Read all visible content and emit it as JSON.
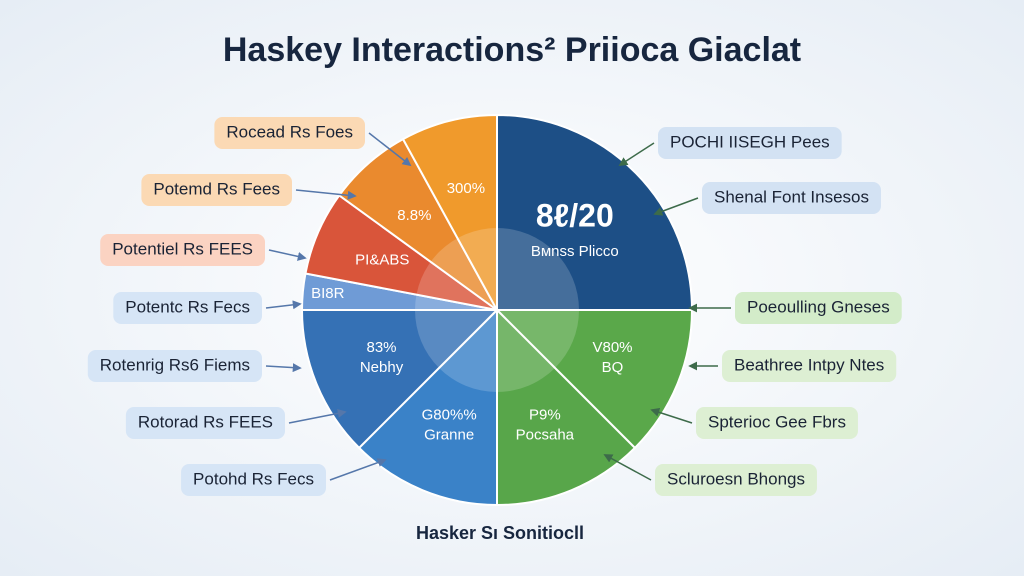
{
  "chart_data": {
    "type": "pie",
    "title": "Haskey Interactions² Priioca Giaclat",
    "footer": "Hasker Sı Sonitiocll",
    "slices": [
      {
        "value": 25,
        "color": "#1d4f86",
        "labels": [
          "8ℓ/20",
          "Bмnss Plicco"
        ]
      },
      {
        "value": 12.5,
        "color": "#5aa84a",
        "labels": [
          "V80%",
          "BQ"
        ]
      },
      {
        "value": 12.5,
        "color": "#58a64a",
        "labels": [
          "P9%",
          "Pocsaha"
        ]
      },
      {
        "value": 12.5,
        "color": "#3a82c8",
        "labels": [
          "G80%%",
          "Granne"
        ]
      },
      {
        "value": 12.5,
        "color": "#3571b5",
        "labels": [
          "83%",
          "Nebhy"
        ]
      },
      {
        "value": 3,
        "color": "#6f9bd6",
        "labels": [
          "BI8R"
        ]
      },
      {
        "value": 7,
        "color": "#d9553a",
        "labels": [
          "PI&ABS"
        ]
      },
      {
        "value": 7,
        "color": "#ea8a2e",
        "labels": [
          "8.8%"
        ]
      },
      {
        "value": 8,
        "color": "#f09a2c",
        "labels": [
          "300%"
        ]
      }
    ],
    "callouts": {
      "left": [
        {
          "text": "Rocead Rs Foes",
          "color": "#fbd9b4"
        },
        {
          "text": "Potemd Rs Fees",
          "color": "#fbd9b4"
        },
        {
          "text": "Potentiel Rs FEES",
          "color": "#fbd3c2"
        },
        {
          "text": "Potentc Rs Fecs",
          "color": "#d6e5f6"
        },
        {
          "text": "Rotenrig Rs6 Fiems",
          "color": "#d6e5f6"
        },
        {
          "text": "Rotorad Rs FEES",
          "color": "#d6e5f6"
        },
        {
          "text": "Potohd Rs Fecs",
          "color": "#d6e5f6"
        }
      ],
      "right": [
        {
          "text": "POCHI IISEGH Pees",
          "color": "#d3e2f3"
        },
        {
          "text": "Shenal Font Insesos",
          "color": "#d3e2f3"
        },
        {
          "text": "Poeoulling Gneses",
          "color": "#d3ecc9"
        },
        {
          "text": "Beathree Intpy Ntes",
          "color": "#ddefd3"
        },
        {
          "text": "Spterioc Gee Fbrs",
          "color": "#ddefd3"
        },
        {
          "text": "Scluroesn Bhongs",
          "color": "#ddefd3"
        }
      ]
    }
  }
}
